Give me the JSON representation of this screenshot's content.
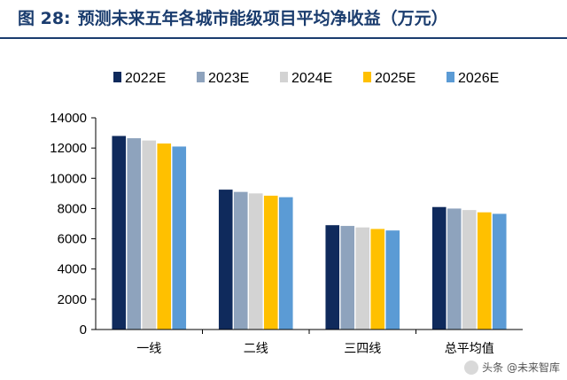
{
  "figure": {
    "number": "图 28:",
    "title": "预测未来五年各城市能级项目平均净收益（万元）"
  },
  "chart_data": {
    "type": "bar",
    "categories": [
      "一线",
      "二线",
      "三四线",
      "总平均值"
    ],
    "series": [
      {
        "name": "2022E",
        "color": "#0f2a5c",
        "values": [
          12800,
          9250,
          6900,
          8100
        ]
      },
      {
        "name": "2023E",
        "color": "#8ea3bd",
        "values": [
          12650,
          9100,
          6850,
          8000
        ]
      },
      {
        "name": "2024E",
        "color": "#d3d3d3",
        "values": [
          12500,
          9000,
          6750,
          7900
        ]
      },
      {
        "name": "2025E",
        "color": "#ffc000",
        "values": [
          12300,
          8850,
          6650,
          7750
        ]
      },
      {
        "name": "2026E",
        "color": "#5b9bd5",
        "values": [
          12100,
          8750,
          6550,
          7650
        ]
      }
    ],
    "ylim": [
      0,
      14000
    ],
    "yticks": [
      0,
      2000,
      4000,
      6000,
      8000,
      10000,
      12000,
      14000
    ],
    "legend_position": "top",
    "grid": false
  },
  "watermark": {
    "text": "头条 @未来智库"
  }
}
